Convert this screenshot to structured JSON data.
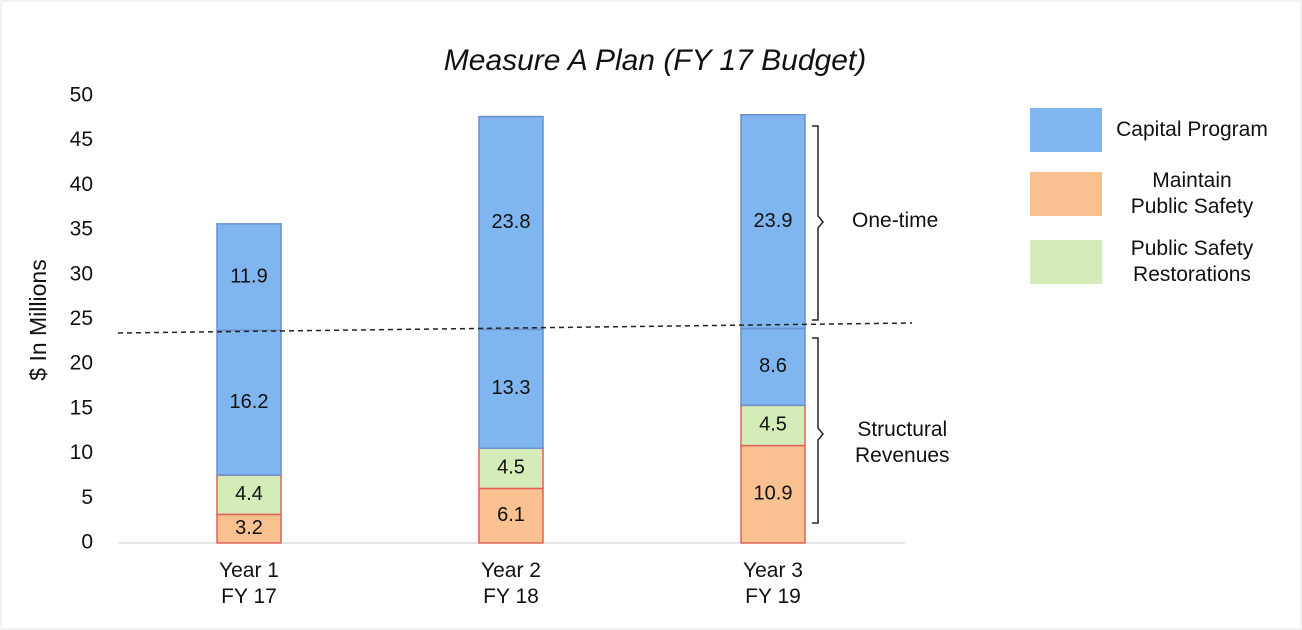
{
  "chart_data": {
    "type": "stacked_bar",
    "title": "Measure A Plan (FY 17 Budget)",
    "y_label": "$ In Millions",
    "categories": [
      "Year 1\nFY 17",
      "Year 2\nFY 18",
      "Year 3\nFY 19"
    ],
    "series": [
      {
        "name": "Maintain\nPublic Safety",
        "color": "#f9c18f",
        "values": [
          3.2,
          6.1,
          10.9
        ]
      },
      {
        "name": "Public Safety\nRestorations",
        "color": "#d4ecb8",
        "values": [
          4.4,
          4.5,
          4.5
        ]
      },
      {
        "name": "Capital Program",
        "color": "#80b6ef",
        "values": [
          16.2,
          13.3,
          8.6
        ]
      },
      {
        "color": "#80b6ef",
        "values": [
          11.9,
          23.8,
          23.9
        ]
      }
    ],
    "legend_order": [
      2,
      0,
      1
    ],
    "ylim": [
      0,
      50
    ],
    "yticks": [
      0,
      5,
      10,
      15,
      20,
      25,
      30,
      35,
      40,
      45,
      50
    ],
    "grid": false,
    "annotations": [
      "One-time",
      "Structural\nRevenues"
    ]
  }
}
